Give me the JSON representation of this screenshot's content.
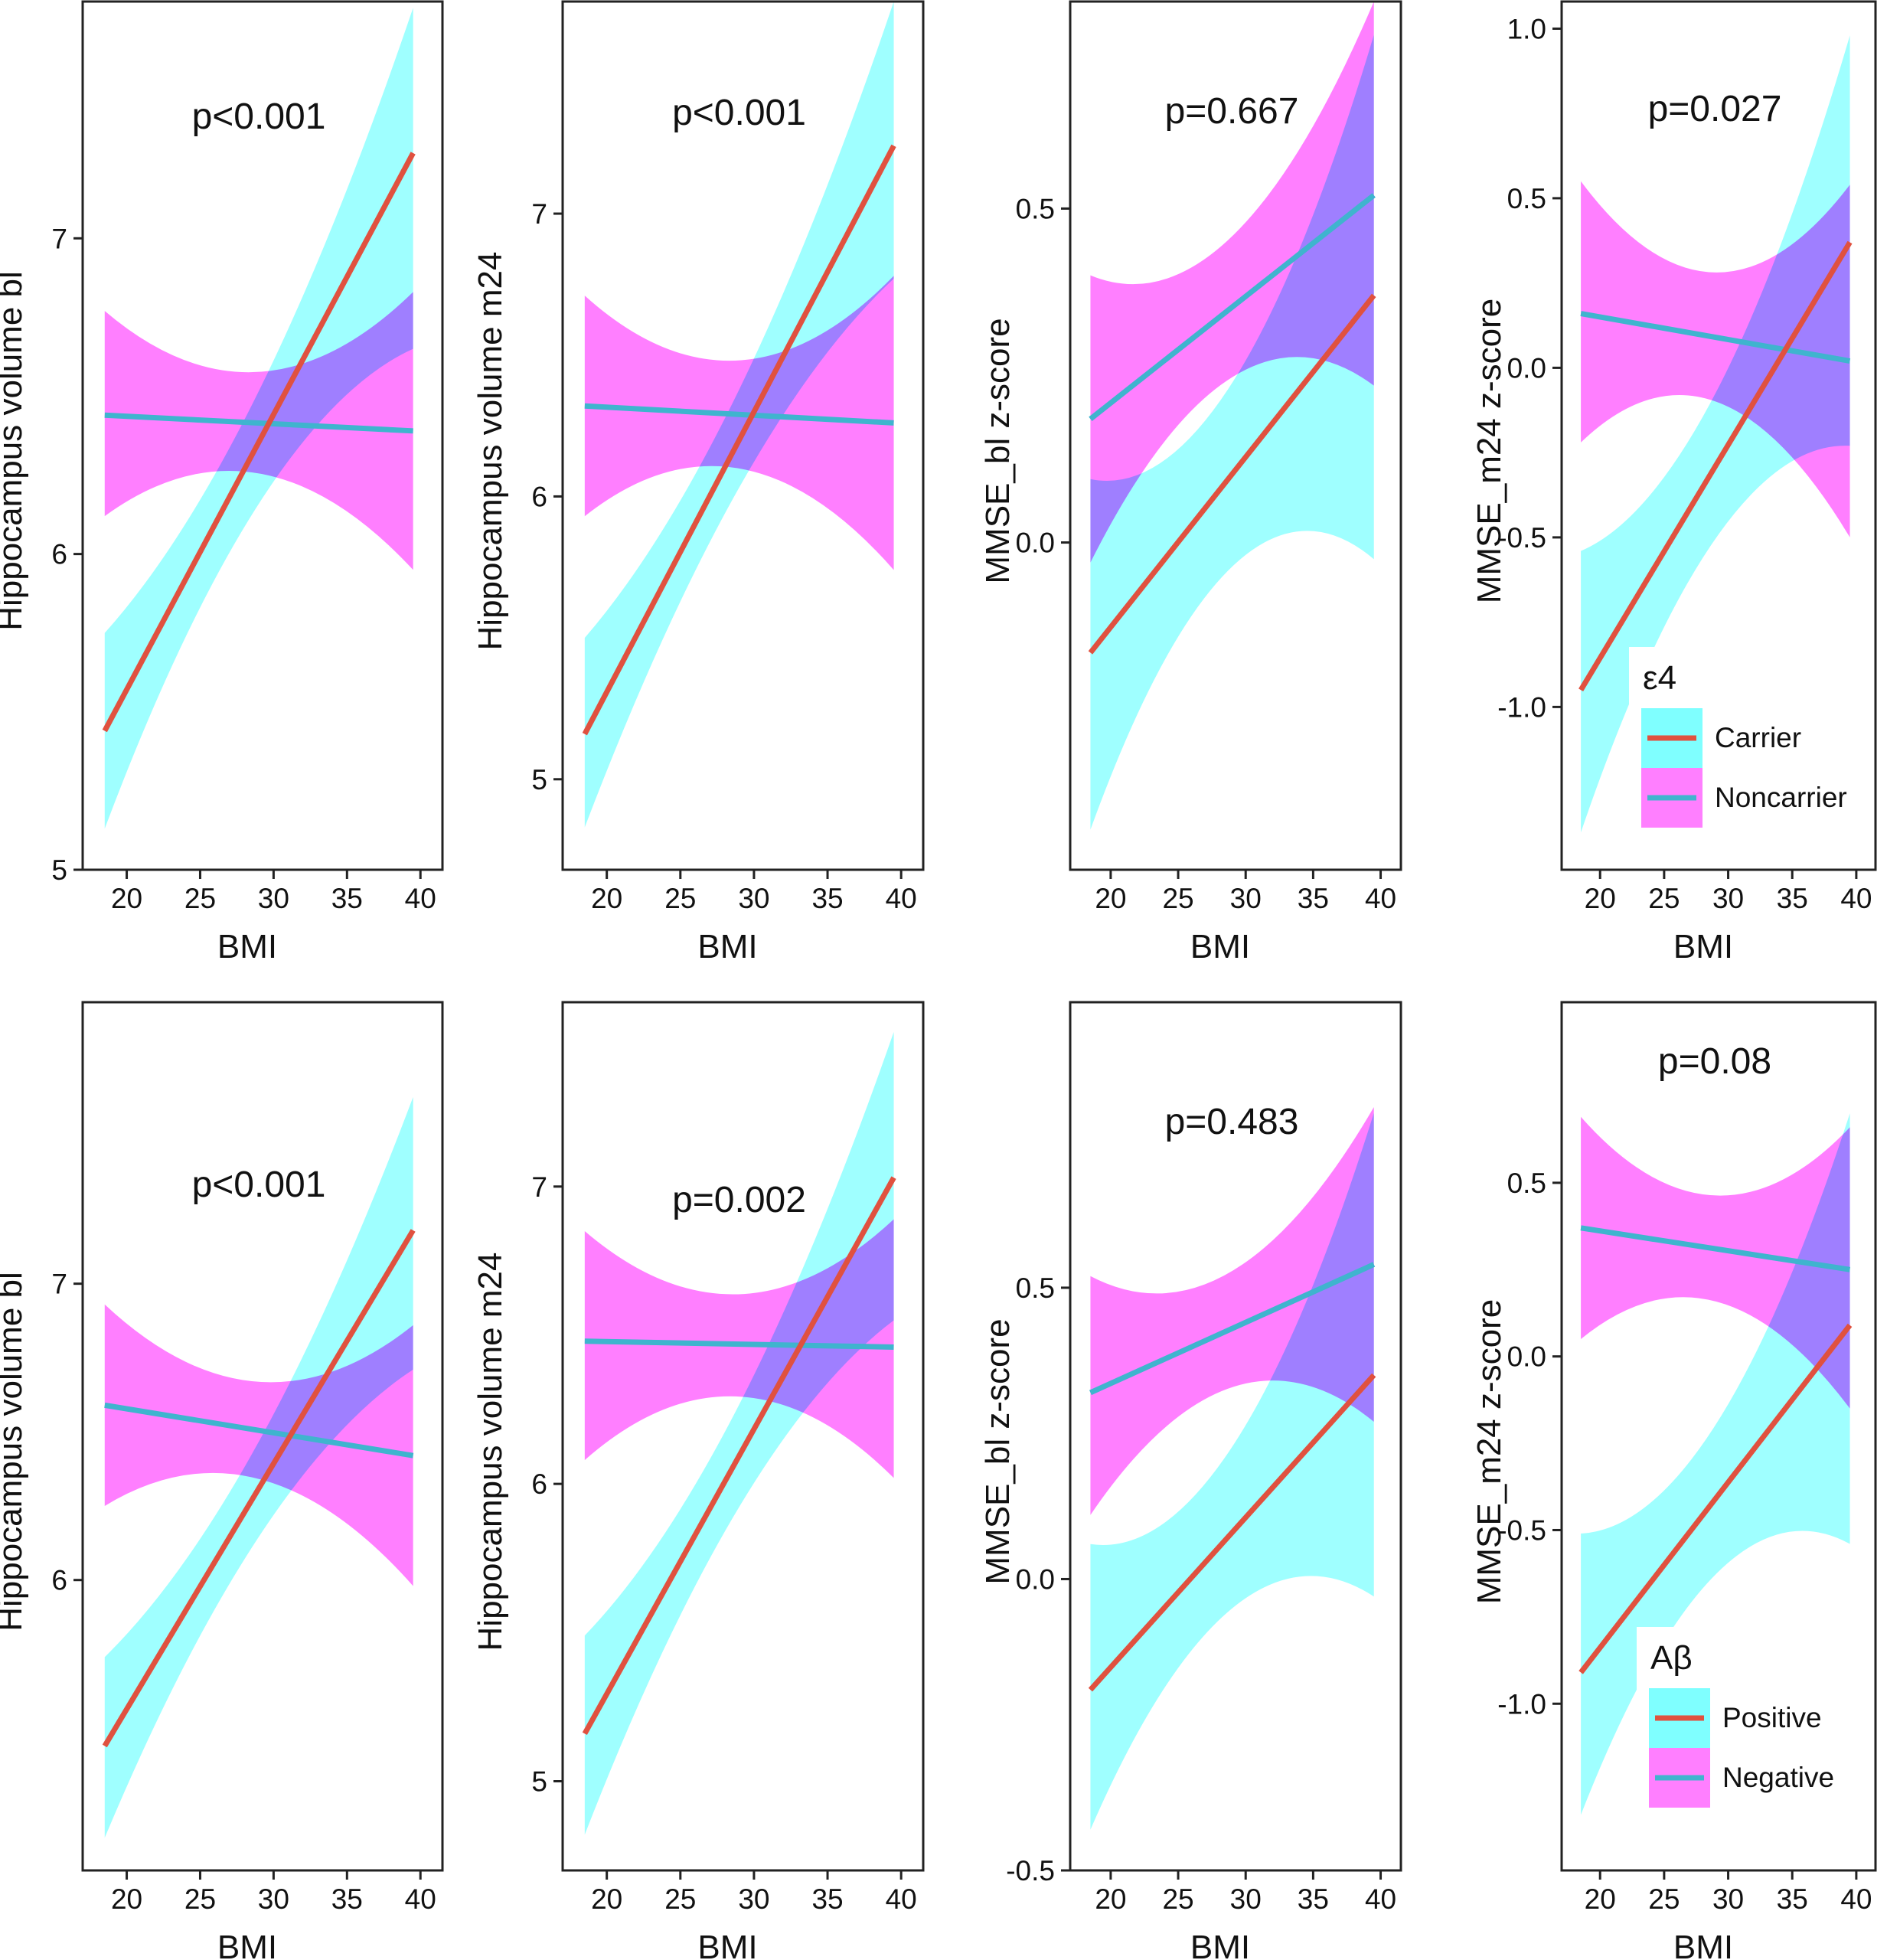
{
  "colors": {
    "carrier_line": "#E0513F",
    "noncarrier_line": "#3FB4CE",
    "band_cyan": "#7FFFFF",
    "band_magenta": "#FF7FFF"
  },
  "legends": {
    "row1": {
      "title": "ε4",
      "items": [
        "Carrier",
        "Noncarrier"
      ]
    },
    "row2": {
      "title": "Aβ",
      "items": [
        "Positive",
        "Negative"
      ]
    }
  },
  "chart_data": [
    {
      "type": "line",
      "row": 1,
      "col": 1,
      "annotation": "p<0.001",
      "xlabel": "BMI",
      "ylabel": "Hippocampus volume bl",
      "xlim": [
        17,
        41.5
      ],
      "ylim": [
        5.0,
        7.75
      ],
      "xticks": [
        20,
        25,
        30,
        35,
        40
      ],
      "yticks": [
        5,
        6,
        7
      ],
      "x": [
        18.5,
        39.5
      ],
      "series": [
        {
          "name": "Carrier",
          "values": [
            5.44,
            7.27
          ],
          "band_low": [
            5.13,
            6.65
          ],
          "band_high": [
            5.75,
            7.73
          ]
        },
        {
          "name": "Noncarrier",
          "values": [
            6.44,
            6.39
          ],
          "band_low": [
            6.12,
            5.95
          ],
          "band_high": [
            6.77,
            6.83
          ]
        }
      ],
      "legend": "none"
    },
    {
      "type": "line",
      "row": 1,
      "col": 2,
      "annotation": "p<0.001",
      "xlabel": "BMI",
      "ylabel": "Hippocampus volume m24",
      "xlim": [
        17,
        41.5
      ],
      "ylim": [
        4.68,
        7.75
      ],
      "xticks": [
        20,
        25,
        30,
        35,
        40
      ],
      "yticks": [
        5,
        6,
        7
      ],
      "x": [
        18.5,
        39.5
      ],
      "series": [
        {
          "name": "Carrier",
          "values": [
            5.16,
            7.24
          ],
          "band_low": [
            4.83,
            6.77
          ],
          "band_high": [
            5.5,
            7.75
          ]
        },
        {
          "name": "Noncarrier",
          "values": [
            6.32,
            6.26
          ],
          "band_low": [
            5.93,
            5.74
          ],
          "band_high": [
            6.71,
            6.78
          ]
        }
      ],
      "legend": "none"
    },
    {
      "type": "line",
      "row": 1,
      "col": 3,
      "annotation": "p=0.667",
      "xlabel": "BMI",
      "ylabel": "MMSE_bl z-score",
      "xlim": [
        17,
        41.5
      ],
      "ylim": [
        -0.49,
        0.81
      ],
      "xticks": [
        20,
        25,
        30,
        35,
        40
      ],
      "yticks": [
        0.0,
        0.5
      ],
      "ytick_labels": [
        "0.0",
        "0.5"
      ],
      "x": [
        18.5,
        39.5
      ],
      "series": [
        {
          "name": "Carrier",
          "values": [
            -0.165,
            0.37
          ],
          "band_low": [
            -0.43,
            -0.025
          ],
          "band_high": [
            0.095,
            0.76
          ]
        },
        {
          "name": "Noncarrier",
          "values": [
            0.185,
            0.52
          ],
          "band_low": [
            -0.03,
            0.235
          ],
          "band_high": [
            0.4,
            0.81
          ]
        }
      ],
      "legend": "none"
    },
    {
      "type": "line",
      "row": 1,
      "col": 4,
      "annotation": "p=0.027",
      "xlabel": "BMI",
      "ylabel": "MMSE_m24 z-score",
      "xlim": [
        17,
        41.5
      ],
      "ylim": [
        -1.48,
        1.08
      ],
      "xticks": [
        20,
        25,
        30,
        35,
        40
      ],
      "yticks": [
        -1.0,
        -0.5,
        0.0,
        0.5,
        1.0
      ],
      "ytick_labels": [
        "-1.0",
        "-0.5",
        "0.0",
        "0.5",
        "1.0"
      ],
      "x": [
        18.5,
        39.5
      ],
      "series": [
        {
          "name": "Carrier",
          "values": [
            -0.95,
            0.37
          ],
          "band_low": [
            -1.37,
            -0.23
          ],
          "band_high": [
            -0.54,
            0.98
          ]
        },
        {
          "name": "Noncarrier",
          "values": [
            0.16,
            0.02
          ],
          "band_low": [
            -0.22,
            -0.5
          ],
          "band_high": [
            0.55,
            0.54
          ]
        }
      ],
      "legend": "bottom-right"
    },
    {
      "type": "line",
      "row": 2,
      "col": 1,
      "annotation": "p<0.001",
      "xlabel": "BMI",
      "ylabel": "Hippocampus volume bl",
      "xlim": [
        17,
        41.5
      ],
      "ylim": [
        5.02,
        7.95
      ],
      "xticks": [
        20,
        25,
        30,
        35,
        40
      ],
      "yticks": [
        6,
        7
      ],
      "x": [
        18.5,
        39.5
      ],
      "series": [
        {
          "name": "Positive",
          "values": [
            5.44,
            7.18
          ],
          "band_low": [
            5.13,
            6.71
          ],
          "band_high": [
            5.74,
            7.63
          ]
        },
        {
          "name": "Negative",
          "values": [
            6.59,
            6.42
          ],
          "band_low": [
            6.25,
            5.98
          ],
          "band_high": [
            6.93,
            6.86
          ]
        }
      ],
      "legend": "none"
    },
    {
      "type": "line",
      "row": 2,
      "col": 2,
      "annotation": "p=0.002",
      "xlabel": "BMI",
      "ylabel": "Hippocampus volume m24",
      "xlim": [
        17,
        41.5
      ],
      "ylim": [
        4.7,
        7.62
      ],
      "xticks": [
        20,
        25,
        30,
        35,
        40
      ],
      "yticks": [
        5,
        6,
        7
      ],
      "x": [
        18.5,
        39.5
      ],
      "series": [
        {
          "name": "Positive",
          "values": [
            5.16,
            7.03
          ],
          "band_low": [
            4.82,
            6.55
          ],
          "band_high": [
            5.49,
            7.52
          ]
        },
        {
          "name": "Negative",
          "values": [
            6.48,
            6.46
          ],
          "band_low": [
            6.08,
            6.02
          ],
          "band_high": [
            6.85,
            6.89
          ]
        }
      ],
      "legend": "none"
    },
    {
      "type": "line",
      "row": 2,
      "col": 3,
      "annotation": "p=0.483",
      "xlabel": "BMI",
      "ylabel": "MMSE_bl z-score",
      "xlim": [
        17,
        41.5
      ],
      "ylim": [
        -0.5,
        0.99
      ],
      "xticks": [
        20,
        25,
        30,
        35,
        40
      ],
      "yticks": [
        -0.5,
        0.0,
        0.5
      ],
      "ytick_labels": [
        "-0.5",
        "0.0",
        "0.5"
      ],
      "x": [
        18.5,
        39.5
      ],
      "series": [
        {
          "name": "Positive",
          "values": [
            -0.19,
            0.35
          ],
          "band_low": [
            -0.43,
            -0.03
          ],
          "band_high": [
            0.06,
            0.8
          ]
        },
        {
          "name": "Negative",
          "values": [
            0.32,
            0.54
          ],
          "band_low": [
            0.11,
            0.27
          ],
          "band_high": [
            0.52,
            0.81
          ]
        }
      ],
      "legend": "none"
    },
    {
      "type": "line",
      "row": 2,
      "col": 4,
      "annotation": "p=0.08",
      "xlabel": "BMI",
      "ylabel": "MMSE_m24 z-score",
      "xlim": [
        17,
        41.5
      ],
      "ylim": [
        -1.48,
        1.02
      ],
      "xticks": [
        20,
        25,
        30,
        35,
        40
      ],
      "yticks": [
        -1.0,
        -0.5,
        0.0,
        0.5
      ],
      "ytick_labels": [
        "-1.0",
        "-0.5",
        "0.0",
        "0.5"
      ],
      "x": [
        18.5,
        39.5
      ],
      "series": [
        {
          "name": "Positive",
          "values": [
            -0.91,
            0.09
          ],
          "band_low": [
            -1.32,
            -0.54
          ],
          "band_high": [
            -0.51,
            0.7
          ]
        },
        {
          "name": "Negative",
          "values": [
            0.37,
            0.25
          ],
          "band_low": [
            0.05,
            -0.15
          ],
          "band_high": [
            0.69,
            0.66
          ]
        }
      ],
      "legend": "bottom-right"
    }
  ]
}
